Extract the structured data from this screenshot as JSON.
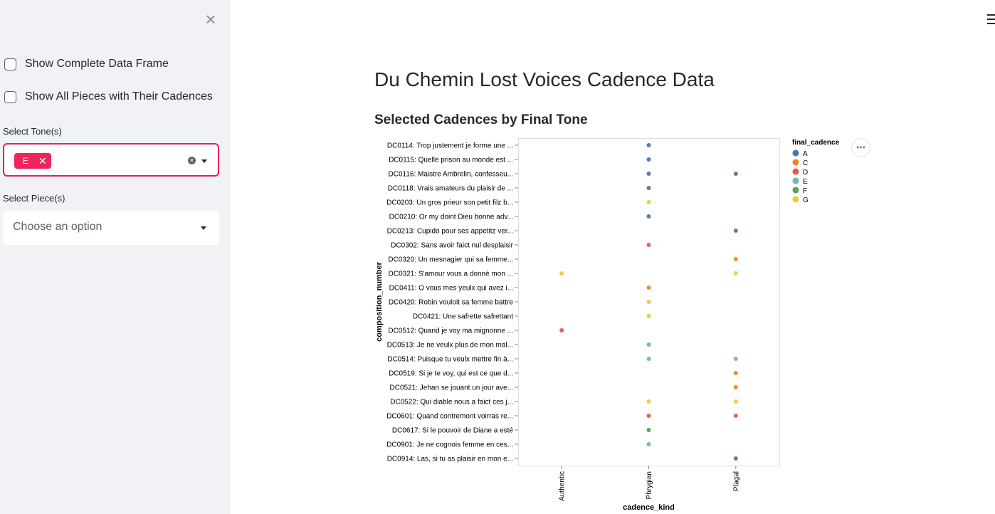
{
  "sidebar": {
    "close_icon": "close-icon",
    "checkbox_complete": "Show Complete Data Frame",
    "checkbox_all_pieces": "Show All Pieces with Their Cadences",
    "tone_label": "Select Tone(s)",
    "tone_selected": "E",
    "piece_label": "Select Piece(s)",
    "piece_placeholder": "Choose an option"
  },
  "main": {
    "title": "Du Chemin Lost Voices Cadence Data",
    "chart_heading": "Selected Cadences by Final Tone"
  },
  "chart_data": {
    "type": "scatter",
    "xlabel": "cadence_kind",
    "ylabel": "composition_number",
    "x_categories": [
      "Authentic",
      "Phrygian",
      "Plagal"
    ],
    "y_categories": [
      "DC0114: Trop justement je forme une ...",
      "DC0115: Quelle prison au monde est ...",
      "DC0116: Maistre Ambrelin, confesseu...",
      "DC0118: Vrais amateurs du plaisir de ...",
      "DC0203: Un gros prieur son petit filz b...",
      "DC0210: Or my doint Dieu bonne adv...",
      "DC0213: Cupido pour ses appetitz ver...",
      "DC0302: Sans avoir faict nul desplaisir",
      "DC0320: Un mesnagier qui sa femme...",
      "DC0321: S'amour vous a donné mon ...",
      "DC0411: O vous mes yeulx qui avez i...",
      "DC0420: Robin vouloit sa femme battre",
      "DC0421: Une safrette safrettant",
      "DC0512: Quand je voy ma mignonne ...",
      "DC0513: Je ne veulx plus de mon mal...",
      "DC0514: Puisque tu veulx mettre fin à...",
      "DC0519: Si je te voy, qui est ce que d...",
      "DC0521: Jehan se jouant un jour ave...",
      "DC0522: Qui diable nous a faict ces j...",
      "DC0601: Quand contremont voirras re...",
      "DC0617: Si le pouvoir de Diane a esté",
      "DC0901: Je ne cognois femme en ces...",
      "DC0914: Las, si tu as plaisir en mon e..."
    ],
    "legend_title": "final_cadence",
    "legend_position": "right",
    "legend": [
      {
        "name": "A",
        "color": "#4c78a8"
      },
      {
        "name": "C",
        "color": "#f58518"
      },
      {
        "name": "D",
        "color": "#e45756"
      },
      {
        "name": "E",
        "color": "#72b7b2"
      },
      {
        "name": "F",
        "color": "#54a24b"
      },
      {
        "name": "G",
        "color": "#eeca3b"
      }
    ],
    "points": [
      {
        "y": 0,
        "x": "Phrygian",
        "final": "A"
      },
      {
        "y": 1,
        "x": "Phrygian",
        "final": "A"
      },
      {
        "y": 2,
        "x": "Phrygian",
        "final": "A"
      },
      {
        "y": 2,
        "x": "Plagal",
        "final": "A"
      },
      {
        "y": 3,
        "x": "Phrygian",
        "final": "A"
      },
      {
        "y": 4,
        "x": "Phrygian",
        "final": "G"
      },
      {
        "y": 5,
        "x": "Phrygian",
        "final": "A"
      },
      {
        "y": 6,
        "x": "Plagal",
        "final": "A"
      },
      {
        "y": 7,
        "x": "Phrygian",
        "final": "D"
      },
      {
        "y": 8,
        "x": "Plagal",
        "final": "C"
      },
      {
        "y": 9,
        "x": "Authentic",
        "final": "G"
      },
      {
        "y": 9,
        "x": "Plagal",
        "final": "G"
      },
      {
        "y": 10,
        "x": "Phrygian",
        "final": "C"
      },
      {
        "y": 11,
        "x": "Phrygian",
        "final": "G"
      },
      {
        "y": 12,
        "x": "Phrygian",
        "final": "G"
      },
      {
        "y": 13,
        "x": "Authentic",
        "final": "D"
      },
      {
        "y": 14,
        "x": "Phrygian",
        "final": "E"
      },
      {
        "y": 15,
        "x": "Phrygian",
        "final": "E"
      },
      {
        "y": 15,
        "x": "Plagal",
        "final": "E"
      },
      {
        "y": 16,
        "x": "Plagal",
        "final": "C"
      },
      {
        "y": 17,
        "x": "Plagal",
        "final": "C"
      },
      {
        "y": 18,
        "x": "Phrygian",
        "final": "G"
      },
      {
        "y": 18,
        "x": "Plagal",
        "final": "G"
      },
      {
        "y": 19,
        "x": "Phrygian",
        "final": "D"
      },
      {
        "y": 19,
        "x": "Plagal",
        "final": "D"
      },
      {
        "y": 20,
        "x": "Phrygian",
        "final": "F"
      },
      {
        "y": 21,
        "x": "Phrygian",
        "final": "E"
      },
      {
        "y": 22,
        "x": "Plagal",
        "final": "A"
      }
    ],
    "grid": false
  }
}
